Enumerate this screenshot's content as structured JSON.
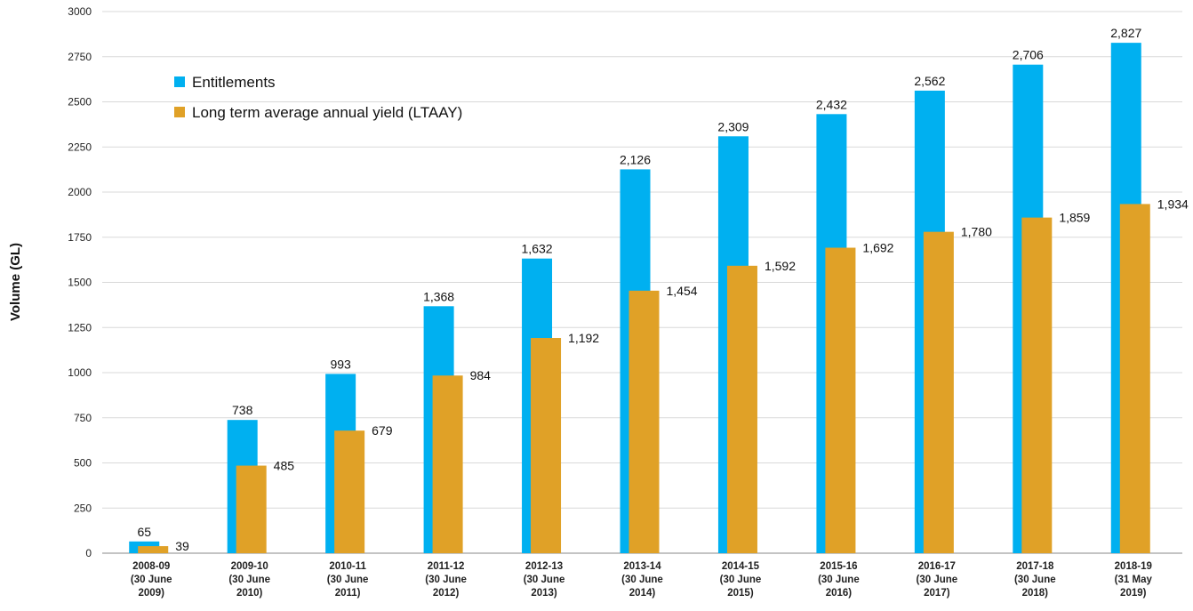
{
  "chart_data": {
    "type": "bar",
    "ylabel": "Volume (GL)",
    "xlabel": "",
    "ylim": [
      0,
      3000
    ],
    "yticks": [
      "0",
      "250",
      "500",
      "750",
      "1000",
      "1250",
      "1500",
      "1750",
      "2000",
      "2250",
      "2500",
      "2750",
      "3000"
    ],
    "ytick_values": [
      0,
      250,
      500,
      750,
      1000,
      1250,
      1500,
      1750,
      2000,
      2250,
      2500,
      2750,
      3000
    ],
    "grid": true,
    "legend_position": "top-left",
    "categories": [
      [
        "2008-09",
        "(30 June",
        "2009)"
      ],
      [
        "2009-10",
        "(30 June",
        "2010)"
      ],
      [
        "2010-11",
        "(30 June",
        "2011)"
      ],
      [
        "2011-12",
        "(30 June",
        "2012)"
      ],
      [
        "2012-13",
        "(30 June",
        "2013)"
      ],
      [
        "2013-14",
        "(30 June",
        "2014)"
      ],
      [
        "2014-15",
        "(30 June",
        "2015)"
      ],
      [
        "2015-16",
        "(30 June",
        "2016)"
      ],
      [
        "2016-17",
        "(30 June",
        "2017)"
      ],
      [
        "2017-18",
        "(30 June",
        "2018)"
      ],
      [
        "2018-19",
        "(31 May",
        "2019)"
      ]
    ],
    "series": [
      {
        "name": "Entitlements",
        "color": "#00b0f0",
        "values": [
          65,
          738,
          993,
          1368,
          1632,
          2126,
          2309,
          2432,
          2562,
          2706,
          2827
        ],
        "labels": [
          "65",
          "738",
          "993",
          "1,368",
          "1,632",
          "2,126",
          "2,309",
          "2,432",
          "2,562",
          "2,706",
          "2,827"
        ]
      },
      {
        "name": "Long term average annual yield (LTAAY)",
        "color": "#e0a127",
        "values": [
          39,
          485,
          679,
          984,
          1192,
          1454,
          1592,
          1692,
          1780,
          1859,
          1934
        ],
        "labels": [
          "39",
          "485",
          "679",
          "984",
          "1,192",
          "1,454",
          "1,592",
          "1,692",
          "1,780",
          "1,859",
          "1,934"
        ]
      }
    ]
  }
}
